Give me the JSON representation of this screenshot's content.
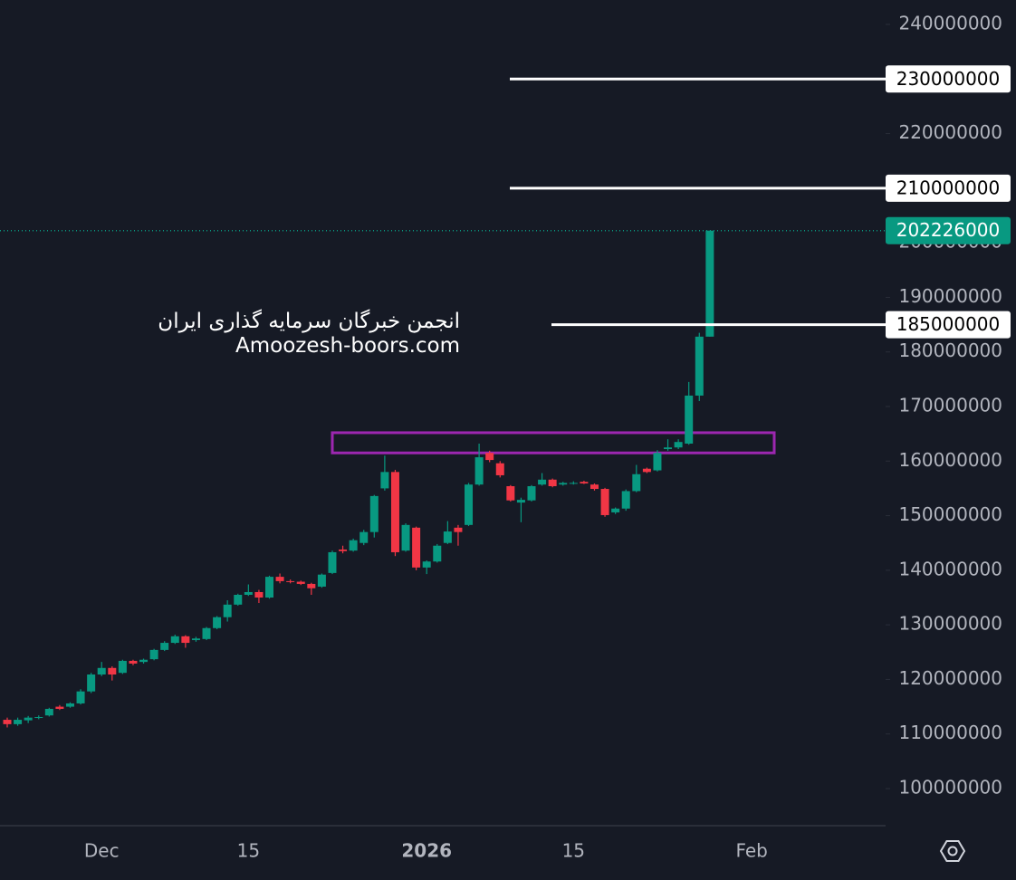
{
  "chart_data": {
    "type": "candlestick",
    "up_color": "#089981",
    "down_color": "#f23645",
    "categories": [
      null,
      null,
      null,
      null,
      null,
      null,
      null,
      null,
      null,
      "Dec",
      null,
      null,
      null,
      null,
      null,
      null,
      null,
      null,
      null,
      null,
      null,
      null,
      null,
      "15",
      null,
      null,
      null,
      null,
      null,
      null,
      null,
      null,
      null,
      null,
      null,
      null,
      null,
      null,
      null,
      null,
      "2026",
      null,
      null,
      null,
      null,
      null,
      null,
      null,
      null,
      null,
      null,
      null,
      null,
      null,
      "15",
      null,
      null,
      null,
      null,
      null,
      null,
      null,
      null,
      null,
      null,
      null,
      null,
      null,
      null,
      null,
      null,
      "Feb"
    ],
    "open": [
      112600000,
      111800000,
      112500000,
      113000000,
      113400000,
      115000000,
      115000000,
      115600000,
      117800000,
      120900000,
      122100000,
      121200000,
      123400000,
      123200000,
      123700000,
      125400000,
      126700000,
      127900000,
      127200000,
      127400000,
      129400000,
      131400000,
      133700000,
      135500000,
      136000000,
      135000000,
      138800000,
      138000000,
      137900000,
      137500000,
      137000000,
      139500000,
      143800000,
      143600000,
      145000000,
      147000000,
      155000000,
      158000000,
      143600000,
      147800000,
      140500000,
      141600000,
      145000000,
      147800000,
      148300000,
      155700000,
      161500000,
      159600000,
      155400000,
      152400000,
      152800000,
      155700000,
      156600000,
      155700000,
      156000000,
      156200000,
      155700000,
      154900000,
      150600000,
      151300000,
      154500000,
      158600000,
      158300000,
      162200000,
      162500000,
      163200000,
      172000000,
      182800000,
      null,
      null,
      null,
      null
    ],
    "high": [
      113000000,
      113000000,
      113300000,
      113400000,
      114800000,
      115300000,
      115800000,
      118200000,
      121200000,
      123200000,
      122400000,
      123600000,
      123600000,
      123800000,
      125600000,
      127000000,
      128200000,
      128100000,
      127800000,
      129600000,
      131600000,
      134500000,
      135700000,
      137400000,
      136400000,
      139000000,
      139400000,
      138300000,
      138100000,
      137700000,
      139400000,
      143600000,
      144500000,
      145800000,
      147400000,
      153800000,
      161000000,
      158400000,
      148600000,
      148000000,
      141800000,
      144800000,
      149000000,
      148300000,
      156000000,
      163200000,
      161900000,
      160000000,
      155600000,
      153300000,
      155600000,
      157800000,
      156800000,
      156200000,
      156300000,
      156400000,
      155900000,
      155100000,
      151500000,
      154800000,
      159300000,
      158800000,
      162000000,
      164000000,
      164000000,
      174500000,
      183500000,
      202226000,
      null,
      null,
      null,
      null
    ],
    "low": [
      111200000,
      111500000,
      112000000,
      112700000,
      113200000,
      114400000,
      114800000,
      115400000,
      117500000,
      120600000,
      119800000,
      121000000,
      122600000,
      122900000,
      123500000,
      125200000,
      126500000,
      125800000,
      126900000,
      127200000,
      129200000,
      130600000,
      133500000,
      135300000,
      134000000,
      134800000,
      137600000,
      137600000,
      137300000,
      135500000,
      136800000,
      139300000,
      143100000,
      143400000,
      144600000,
      146000000,
      154600000,
      142600000,
      143400000,
      140000000,
      139300000,
      141400000,
      144800000,
      144500000,
      148100000,
      155500000,
      159800000,
      157000000,
      152600000,
      148800000,
      152600000,
      155500000,
      155200000,
      155500000,
      155700000,
      155800000,
      154600000,
      149800000,
      150300000,
      150900000,
      154300000,
      157800000,
      158100000,
      161900000,
      162200000,
      163000000,
      171000000,
      182800000,
      null,
      null,
      null,
      null
    ],
    "close": [
      111800000,
      112600000,
      113000000,
      113100000,
      114600000,
      114600000,
      115600000,
      117800000,
      120900000,
      122100000,
      120900000,
      123400000,
      122900000,
      123600000,
      125400000,
      126700000,
      127900000,
      126700000,
      127500000,
      129400000,
      131400000,
      133700000,
      135500000,
      136000000,
      135000000,
      138800000,
      138000000,
      137900000,
      137500000,
      136700000,
      139200000,
      143300000,
      143500000,
      145500000,
      147000000,
      153600000,
      158000000,
      143300000,
      148300000,
      140500000,
      141600000,
      144500000,
      147100000,
      147000000,
      155700000,
      160700000,
      160200000,
      157400000,
      152800000,
      152900000,
      155400000,
      156600000,
      155400000,
      156000000,
      156000000,
      155900000,
      154900000,
      150100000,
      151300000,
      154500000,
      157600000,
      158000000,
      161500000,
      162500000,
      163500000,
      172000000,
      182800000,
      202226000,
      null,
      null,
      null,
      null
    ],
    "ylim": [
      93200000,
      244480000
    ],
    "yticks": [
      100000000,
      110000000,
      120000000,
      130000000,
      140000000,
      150000000,
      160000000,
      170000000,
      180000000,
      190000000,
      200000000,
      210000000,
      220000000,
      230000000,
      240000000
    ],
    "levels": [
      230000000,
      210000000,
      185000000
    ],
    "level_color": "#ffffff",
    "last_price": 202226000,
    "zone": {
      "low": 161500000,
      "high": 165200000,
      "color": "#9c27b0"
    },
    "annotations": [
      "انجمن خبرگان سرمایه گذاری ایران",
      "Amoozesh-boors.com"
    ]
  }
}
